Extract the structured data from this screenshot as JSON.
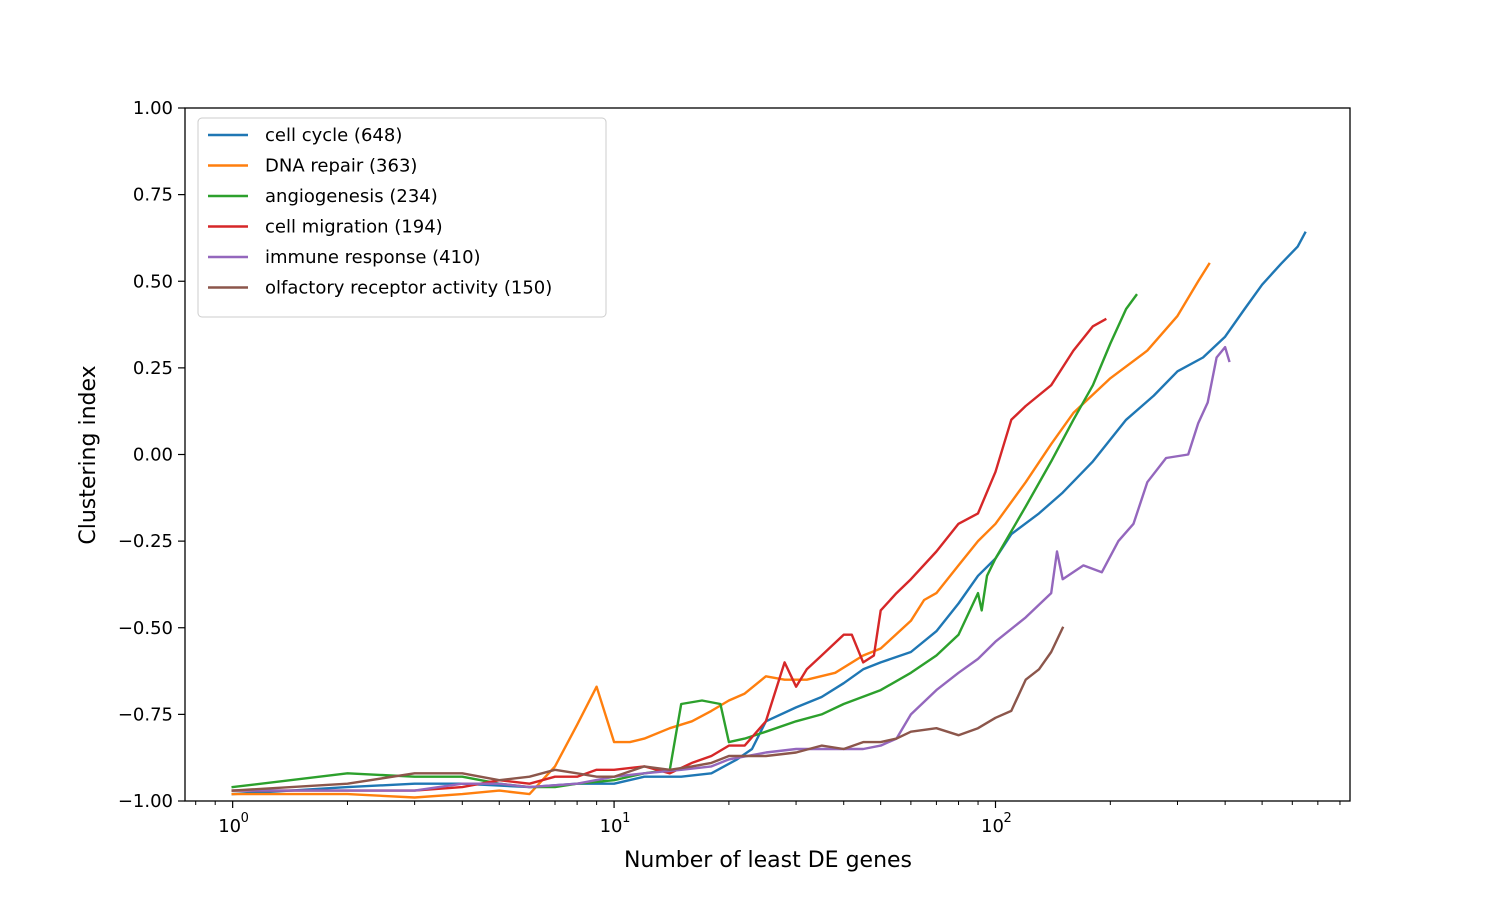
{
  "chart_data": {
    "type": "line",
    "title": "",
    "xlabel": "Number of least DE genes",
    "ylabel": "Clustering index",
    "xscale": "log",
    "xlim": [
      0.75,
      850
    ],
    "ylim": [
      -1.0,
      1.0
    ],
    "x_ticks": [
      1,
      10,
      100
    ],
    "x_tick_labels": [
      {
        "base": "10",
        "exp": "0"
      },
      {
        "base": "10",
        "exp": "1"
      },
      {
        "base": "10",
        "exp": "2"
      }
    ],
    "y_ticks": [
      -1.0,
      -0.75,
      -0.5,
      -0.25,
      0.0,
      0.25,
      0.5,
      0.75,
      1.0
    ],
    "y_tick_labels": [
      "−1.00",
      "−0.75",
      "−0.50",
      "−0.25",
      "0.00",
      "0.25",
      "0.50",
      "0.75",
      "1.00"
    ],
    "grid": false,
    "legend_position": "top-left",
    "series": [
      {
        "name": "cell cycle (648)",
        "color": "#1f77b4",
        "points": [
          [
            1,
            -0.98
          ],
          [
            2,
            -0.96
          ],
          [
            3,
            -0.95
          ],
          [
            4,
            -0.95
          ],
          [
            6,
            -0.96
          ],
          [
            8,
            -0.95
          ],
          [
            10,
            -0.95
          ],
          [
            12,
            -0.93
          ],
          [
            15,
            -0.93
          ],
          [
            18,
            -0.92
          ],
          [
            21,
            -0.88
          ],
          [
            23,
            -0.85
          ],
          [
            25,
            -0.77
          ],
          [
            30,
            -0.73
          ],
          [
            35,
            -0.7
          ],
          [
            40,
            -0.66
          ],
          [
            45,
            -0.62
          ],
          [
            50,
            -0.6
          ],
          [
            60,
            -0.57
          ],
          [
            70,
            -0.51
          ],
          [
            80,
            -0.43
          ],
          [
            90,
            -0.35
          ],
          [
            100,
            -0.3
          ],
          [
            110,
            -0.23
          ],
          [
            130,
            -0.17
          ],
          [
            150,
            -0.11
          ],
          [
            180,
            -0.02
          ],
          [
            220,
            0.1
          ],
          [
            260,
            0.17
          ],
          [
            300,
            0.24
          ],
          [
            350,
            0.28
          ],
          [
            400,
            0.34
          ],
          [
            450,
            0.42
          ],
          [
            500,
            0.49
          ],
          [
            560,
            0.55
          ],
          [
            620,
            0.6
          ],
          [
            648,
            0.64
          ]
        ]
      },
      {
        "name": "DNA repair (363)",
        "color": "#ff7f0e",
        "points": [
          [
            1,
            -0.98
          ],
          [
            2,
            -0.98
          ],
          [
            3,
            -0.99
          ],
          [
            4,
            -0.98
          ],
          [
            5,
            -0.97
          ],
          [
            6,
            -0.98
          ],
          [
            7,
            -0.9
          ],
          [
            8,
            -0.78
          ],
          [
            9,
            -0.67
          ],
          [
            10,
            -0.83
          ],
          [
            11,
            -0.83
          ],
          [
            12,
            -0.82
          ],
          [
            14,
            -0.79
          ],
          [
            16,
            -0.77
          ],
          [
            18,
            -0.74
          ],
          [
            20,
            -0.71
          ],
          [
            22,
            -0.69
          ],
          [
            25,
            -0.64
          ],
          [
            28,
            -0.65
          ],
          [
            32,
            -0.65
          ],
          [
            38,
            -0.63
          ],
          [
            45,
            -0.58
          ],
          [
            50,
            -0.56
          ],
          [
            60,
            -0.48
          ],
          [
            65,
            -0.42
          ],
          [
            70,
            -0.4
          ],
          [
            80,
            -0.32
          ],
          [
            90,
            -0.25
          ],
          [
            100,
            -0.2
          ],
          [
            120,
            -0.08
          ],
          [
            140,
            0.03
          ],
          [
            160,
            0.12
          ],
          [
            200,
            0.22
          ],
          [
            250,
            0.3
          ],
          [
            300,
            0.4
          ],
          [
            340,
            0.5
          ],
          [
            363,
            0.55
          ]
        ]
      },
      {
        "name": "angiogenesis (234)",
        "color": "#2ca02c",
        "points": [
          [
            1,
            -0.96
          ],
          [
            2,
            -0.92
          ],
          [
            3,
            -0.93
          ],
          [
            4,
            -0.93
          ],
          [
            5,
            -0.95
          ],
          [
            6,
            -0.96
          ],
          [
            7,
            -0.96
          ],
          [
            8,
            -0.95
          ],
          [
            10,
            -0.94
          ],
          [
            12,
            -0.92
          ],
          [
            14,
            -0.91
          ],
          [
            15,
            -0.72
          ],
          [
            17,
            -0.71
          ],
          [
            19,
            -0.72
          ],
          [
            20,
            -0.83
          ],
          [
            22,
            -0.82
          ],
          [
            25,
            -0.8
          ],
          [
            30,
            -0.77
          ],
          [
            35,
            -0.75
          ],
          [
            40,
            -0.72
          ],
          [
            50,
            -0.68
          ],
          [
            60,
            -0.63
          ],
          [
            70,
            -0.58
          ],
          [
            80,
            -0.52
          ],
          [
            90,
            -0.4
          ],
          [
            92,
            -0.45
          ],
          [
            95,
            -0.35
          ],
          [
            100,
            -0.3
          ],
          [
            120,
            -0.15
          ],
          [
            140,
            -0.02
          ],
          [
            160,
            0.1
          ],
          [
            180,
            0.2
          ],
          [
            200,
            0.32
          ],
          [
            220,
            0.42
          ],
          [
            234,
            0.46
          ]
        ]
      },
      {
        "name": "cell migration (194)",
        "color": "#d62728",
        "points": [
          [
            1,
            -0.97
          ],
          [
            2,
            -0.97
          ],
          [
            3,
            -0.97
          ],
          [
            4,
            -0.96
          ],
          [
            5,
            -0.94
          ],
          [
            6,
            -0.95
          ],
          [
            7,
            -0.93
          ],
          [
            8,
            -0.93
          ],
          [
            9,
            -0.91
          ],
          [
            10,
            -0.91
          ],
          [
            12,
            -0.9
          ],
          [
            14,
            -0.92
          ],
          [
            16,
            -0.89
          ],
          [
            18,
            -0.87
          ],
          [
            20,
            -0.84
          ],
          [
            22,
            -0.84
          ],
          [
            25,
            -0.77
          ],
          [
            28,
            -0.6
          ],
          [
            30,
            -0.67
          ],
          [
            32,
            -0.62
          ],
          [
            35,
            -0.58
          ],
          [
            40,
            -0.52
          ],
          [
            42,
            -0.52
          ],
          [
            45,
            -0.6
          ],
          [
            48,
            -0.58
          ],
          [
            50,
            -0.45
          ],
          [
            55,
            -0.4
          ],
          [
            60,
            -0.36
          ],
          [
            70,
            -0.28
          ],
          [
            80,
            -0.2
          ],
          [
            90,
            -0.17
          ],
          [
            100,
            -0.05
          ],
          [
            110,
            0.1
          ],
          [
            120,
            0.14
          ],
          [
            140,
            0.2
          ],
          [
            160,
            0.3
          ],
          [
            180,
            0.37
          ],
          [
            194,
            0.39
          ]
        ]
      },
      {
        "name": "immune response (410)",
        "color": "#9467bd",
        "points": [
          [
            1,
            -0.97
          ],
          [
            2,
            -0.97
          ],
          [
            3,
            -0.97
          ],
          [
            4,
            -0.95
          ],
          [
            5,
            -0.95
          ],
          [
            6,
            -0.96
          ],
          [
            8,
            -0.95
          ],
          [
            10,
            -0.93
          ],
          [
            12,
            -0.92
          ],
          [
            15,
            -0.91
          ],
          [
            18,
            -0.9
          ],
          [
            20,
            -0.88
          ],
          [
            25,
            -0.86
          ],
          [
            30,
            -0.85
          ],
          [
            35,
            -0.85
          ],
          [
            40,
            -0.85
          ],
          [
            45,
            -0.85
          ],
          [
            50,
            -0.84
          ],
          [
            55,
            -0.82
          ],
          [
            60,
            -0.75
          ],
          [
            70,
            -0.68
          ],
          [
            80,
            -0.63
          ],
          [
            90,
            -0.59
          ],
          [
            100,
            -0.54
          ],
          [
            120,
            -0.47
          ],
          [
            140,
            -0.4
          ],
          [
            145,
            -0.28
          ],
          [
            150,
            -0.36
          ],
          [
            170,
            -0.32
          ],
          [
            190,
            -0.34
          ],
          [
            210,
            -0.25
          ],
          [
            230,
            -0.2
          ],
          [
            250,
            -0.08
          ],
          [
            280,
            -0.01
          ],
          [
            320,
            0.0
          ],
          [
            340,
            0.09
          ],
          [
            360,
            0.15
          ],
          [
            380,
            0.28
          ],
          [
            400,
            0.31
          ],
          [
            410,
            0.27
          ]
        ]
      },
      {
        "name": "olfactory receptor activity (150)",
        "color": "#8c564b",
        "points": [
          [
            1,
            -0.97
          ],
          [
            2,
            -0.95
          ],
          [
            3,
            -0.92
          ],
          [
            4,
            -0.92
          ],
          [
            5,
            -0.94
          ],
          [
            6,
            -0.93
          ],
          [
            7,
            -0.91
          ],
          [
            8,
            -0.92
          ],
          [
            9,
            -0.93
          ],
          [
            10,
            -0.93
          ],
          [
            12,
            -0.9
          ],
          [
            14,
            -0.91
          ],
          [
            16,
            -0.9
          ],
          [
            18,
            -0.89
          ],
          [
            20,
            -0.87
          ],
          [
            25,
            -0.87
          ],
          [
            30,
            -0.86
          ],
          [
            35,
            -0.84
          ],
          [
            40,
            -0.85
          ],
          [
            45,
            -0.83
          ],
          [
            50,
            -0.83
          ],
          [
            55,
            -0.82
          ],
          [
            60,
            -0.8
          ],
          [
            70,
            -0.79
          ],
          [
            80,
            -0.81
          ],
          [
            90,
            -0.79
          ],
          [
            100,
            -0.76
          ],
          [
            110,
            -0.74
          ],
          [
            120,
            -0.65
          ],
          [
            130,
            -0.62
          ],
          [
            140,
            -0.57
          ],
          [
            150,
            -0.5
          ]
        ]
      }
    ]
  }
}
